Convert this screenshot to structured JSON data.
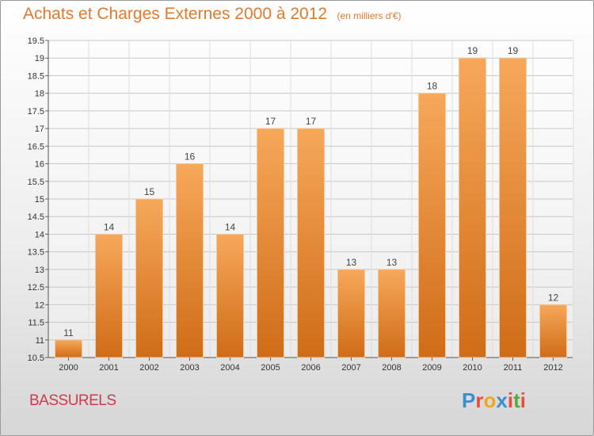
{
  "header": {
    "title": "Achats et Charges Externes 2000 à 2012",
    "unit": "(en milliers d'€)"
  },
  "footer": {
    "commune": "BASSURELS",
    "logo_letters": [
      "P",
      "r",
      "o",
      "x",
      "i",
      "t",
      "i"
    ],
    "logo_colors": [
      "#3a8fd0",
      "#e84d3b",
      "#f2a51e",
      "#3a8fd0",
      "#e84d3b",
      "#5aa83b",
      "#e84d3b"
    ]
  },
  "colors": {
    "title": "#e27a2e",
    "bar_top": "#f7a85a",
    "bar_bottom": "#cf6c18",
    "commune": "#d2384f"
  },
  "chart_data": {
    "type": "bar",
    "title": "Achats et Charges Externes 2000 à 2012",
    "subtitle": "(en milliers d'€)",
    "categories": [
      "2000",
      "2001",
      "2002",
      "2003",
      "2004",
      "2005",
      "2006",
      "2007",
      "2008",
      "2009",
      "2010",
      "2011",
      "2012"
    ],
    "values": [
      11,
      14,
      15,
      16,
      14,
      17,
      17,
      13,
      13,
      18,
      19,
      19,
      12
    ],
    "value_labels": [
      "11",
      "14",
      "15",
      "16",
      "14",
      "17",
      "17",
      "13",
      "13",
      "18",
      "19",
      "19",
      "12"
    ],
    "ylim": [
      10.5,
      19.5
    ],
    "yticks": [
      10.5,
      11,
      11.5,
      12,
      12.5,
      13,
      13.5,
      14,
      14.5,
      15,
      15.5,
      16,
      16.5,
      17,
      17.5,
      18,
      18.5,
      19,
      19.5
    ],
    "ytick_labels": [
      "10.5",
      "11",
      "11.5",
      "12",
      "12.5",
      "13",
      "13.5",
      "14",
      "14.5",
      "15",
      "15.5",
      "16",
      "16.5",
      "17",
      "17.5",
      "18",
      "18.5",
      "19",
      "19.5"
    ],
    "grid": true,
    "legend": "none"
  }
}
